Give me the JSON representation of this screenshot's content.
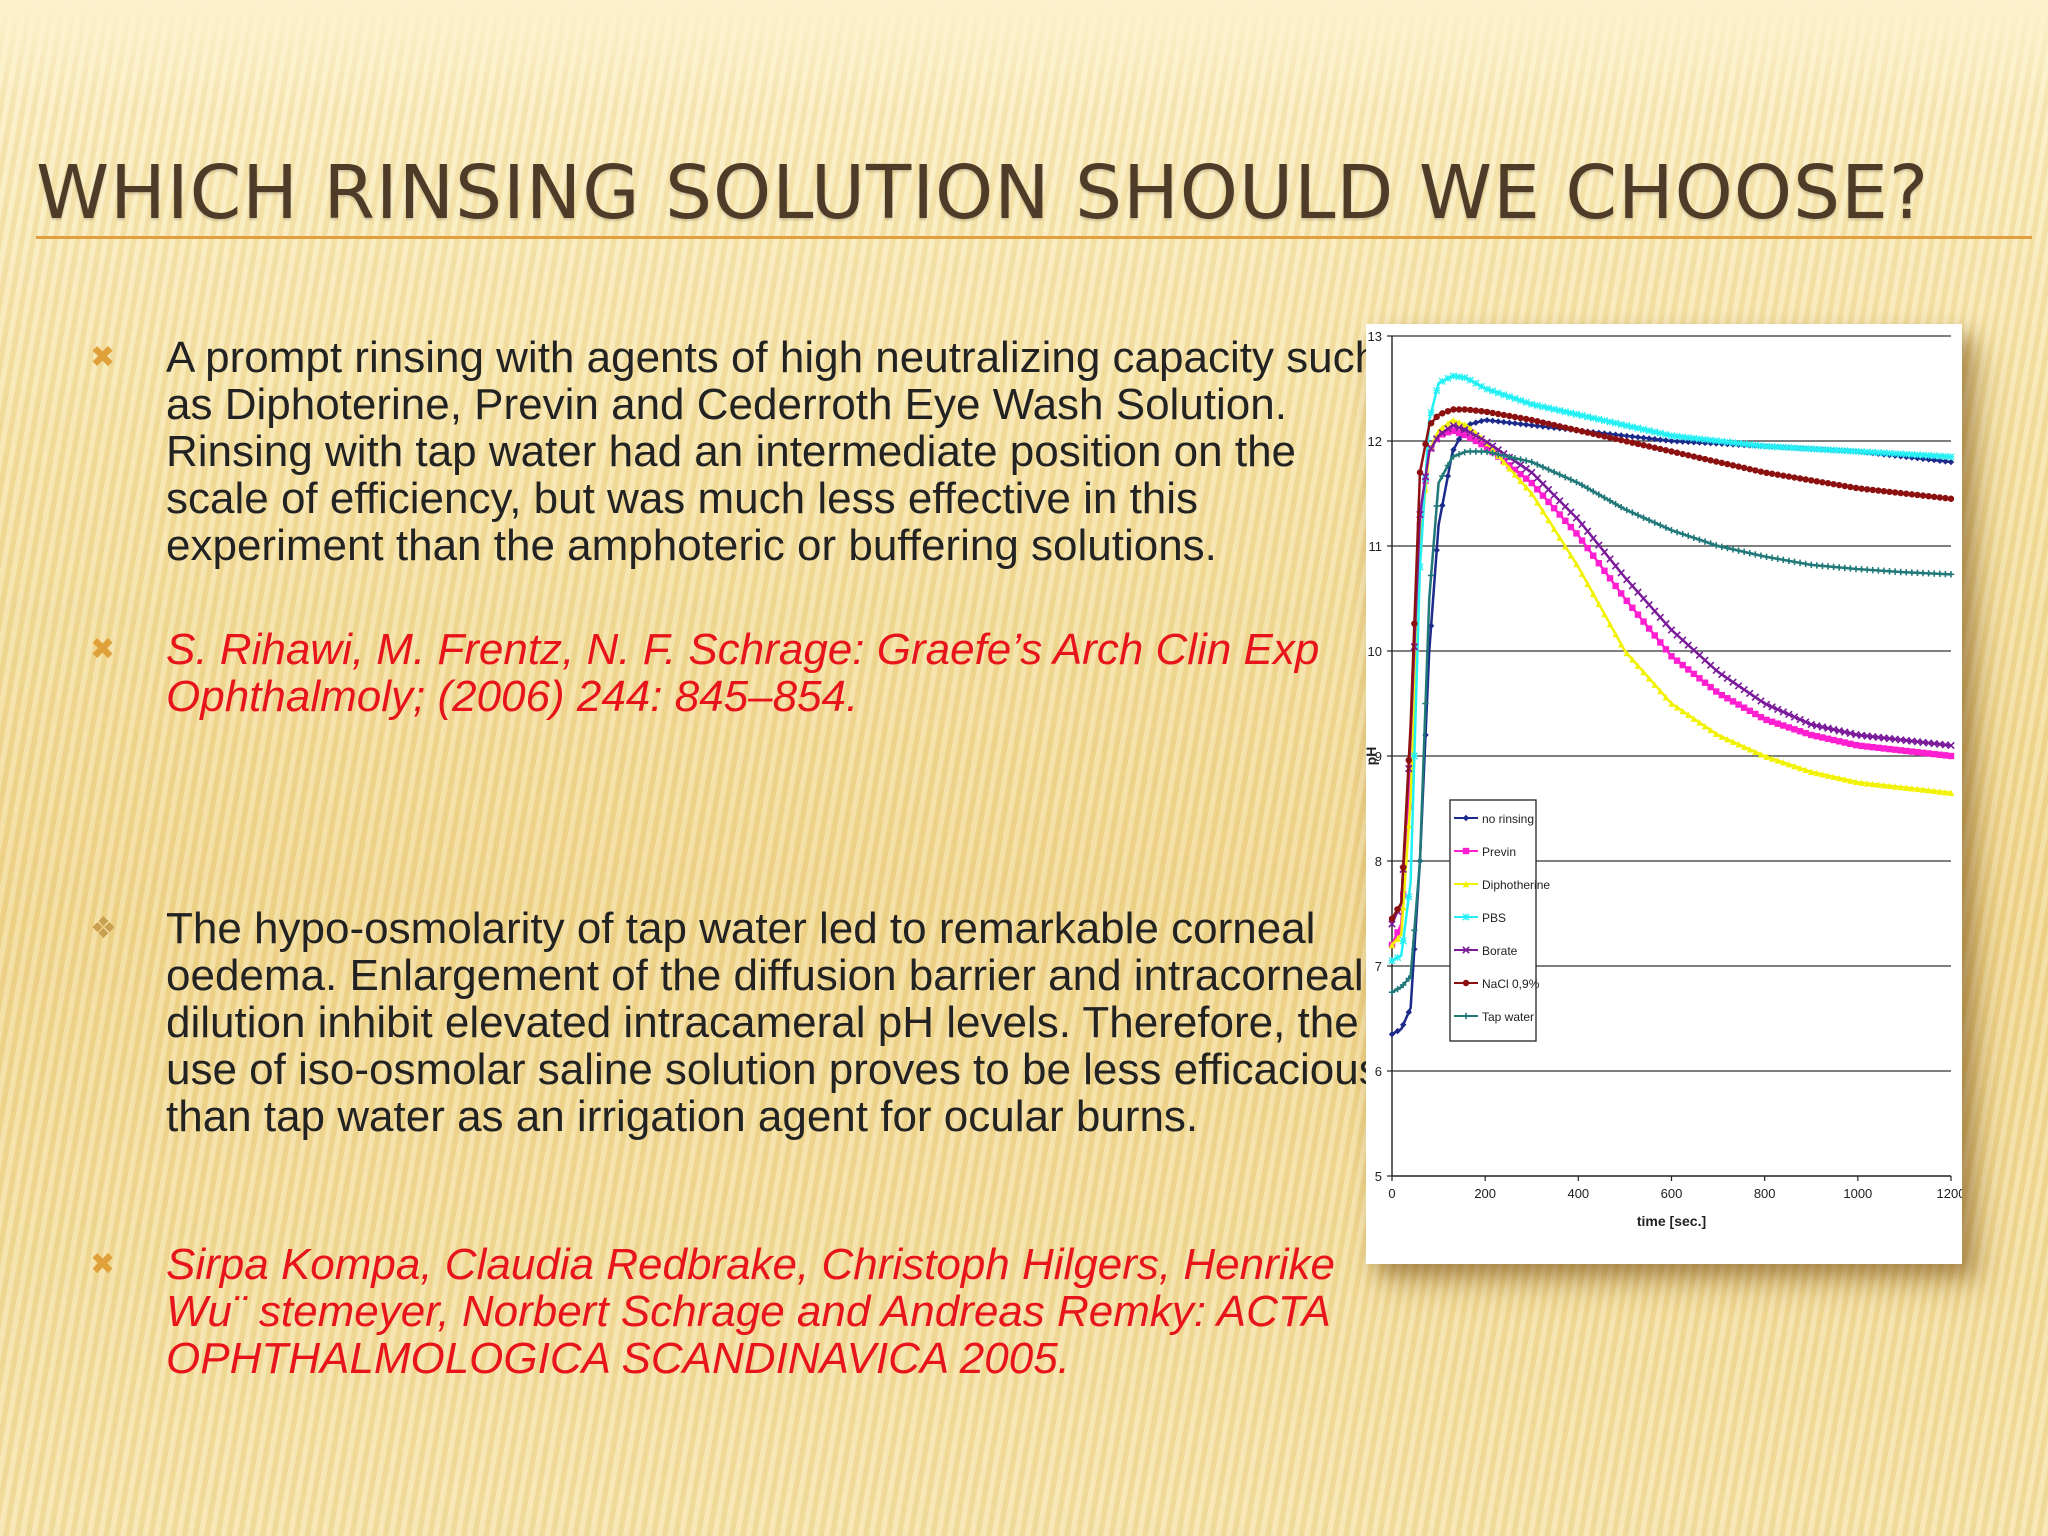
{
  "slide": {
    "title": "Which rinsing solution should we choose?",
    "bullets": [
      {
        "icon": "x-bullet-icon",
        "style": "body",
        "text": "A  prompt rinsing with agents of high neutralizing capacity such as Diphoterine, Previn and Cederroth Eye Wash Solution. Rinsing with tap water had an intermediate position on the scale of efficiency, but was much less effective in this experiment than the amphoteric or buffering solutions."
      },
      {
        "icon": "x-bullet-icon",
        "style": "citation",
        "text": "S. Rihawi, M. Frentz, N. F. Schrage: Graefe’s Arch Clin Exp Ophthalmoly; (2006) 244: 845–854."
      },
      {
        "icon": "diamond-bullet-icon",
        "style": "body",
        "text": "The hypo-osmolarity of tap water led to remarkable corneal oedema. Enlargement of the diffusion barrier and intracorneal dilution inhibit elevated intracameral pH levels. Therefore, the use of iso-osmolar saline solution proves to be less efficacious than tap water as an irrigation agent for ocular burns."
      },
      {
        "icon": "x-bullet-icon",
        "style": "citation",
        "text": "Sirpa Kompa, Claudia Redbrake, Christoph Hilgers, Henrike Wu¨ stemeyer,  Norbert Schrage and Andreas Remky:  ACTA OPHTHALMOLOGICA SCANDINAVICA 2005."
      }
    ],
    "bullet_glyphs": {
      "x": "✖",
      "diamond": "❖"
    },
    "colors": {
      "title": "#4e3b28",
      "accent": "#e0a040",
      "citation": "#e8141b",
      "body": "#222222"
    }
  },
  "chart_data": {
    "type": "line",
    "title": "",
    "xlabel": "time [sec.]",
    "ylabel": "pH",
    "xlim": [
      0,
      1200
    ],
    "ylim": [
      5,
      13
    ],
    "xticks": [
      0,
      200,
      400,
      600,
      800,
      1000,
      1200
    ],
    "yticks": [
      5,
      6,
      7,
      8,
      9,
      10,
      11,
      12,
      13
    ],
    "grid": "horizontal",
    "legend_position": "lower-left",
    "series": [
      {
        "name": "no rinsing",
        "color": "#1c2a8c",
        "marker": "diamond",
        "x": [
          0,
          20,
          40,
          60,
          80,
          100,
          130,
          160,
          200,
          300,
          400,
          600,
          800,
          1000,
          1200
        ],
        "y": [
          6.35,
          6.4,
          6.6,
          8.0,
          10.0,
          11.2,
          11.9,
          12.15,
          12.2,
          12.15,
          12.1,
          12.0,
          11.95,
          11.9,
          11.8
        ]
      },
      {
        "name": "Previn",
        "color": "#ff1ed0",
        "marker": "square",
        "x": [
          0,
          20,
          40,
          60,
          80,
          100,
          130,
          160,
          200,
          300,
          400,
          500,
          600,
          700,
          800,
          900,
          1000,
          1100,
          1200
        ],
        "y": [
          7.2,
          7.4,
          8.8,
          11.2,
          11.9,
          12.05,
          12.1,
          12.05,
          11.95,
          11.6,
          11.1,
          10.5,
          9.95,
          9.6,
          9.35,
          9.2,
          9.1,
          9.05,
          9.0
        ]
      },
      {
        "name": "Diphotherine",
        "color": "#f2f200",
        "marker": "triangle",
        "x": [
          0,
          20,
          40,
          60,
          80,
          100,
          130,
          160,
          200,
          300,
          400,
          500,
          600,
          700,
          800,
          900,
          1000,
          1100,
          1200
        ],
        "y": [
          7.2,
          7.3,
          8.6,
          11.0,
          11.9,
          12.1,
          12.2,
          12.15,
          12.0,
          11.5,
          10.8,
          10.0,
          9.5,
          9.2,
          9.0,
          8.85,
          8.75,
          8.7,
          8.65
        ]
      },
      {
        "name": "PBS",
        "color": "#22f0f4",
        "marker": "star",
        "x": [
          0,
          20,
          40,
          60,
          80,
          100,
          130,
          160,
          200,
          300,
          400,
          600,
          800,
          1000,
          1200
        ],
        "y": [
          7.05,
          7.1,
          7.8,
          10.8,
          12.2,
          12.55,
          12.62,
          12.6,
          12.5,
          12.35,
          12.25,
          12.05,
          11.95,
          11.9,
          11.85
        ]
      },
      {
        "name": "Borate",
        "color": "#7a1a9a",
        "marker": "x",
        "x": [
          0,
          20,
          40,
          60,
          80,
          100,
          130,
          160,
          200,
          300,
          400,
          500,
          600,
          700,
          800,
          900,
          1000,
          1100,
          1200
        ],
        "y": [
          7.4,
          7.6,
          9.2,
          11.3,
          11.9,
          12.05,
          12.15,
          12.1,
          12.0,
          11.7,
          11.25,
          10.7,
          10.2,
          9.8,
          9.5,
          9.3,
          9.2,
          9.15,
          9.1
        ]
      },
      {
        "name": "NaCl 0,9%",
        "color": "#8c1010",
        "marker": "circle",
        "x": [
          0,
          20,
          40,
          60,
          80,
          100,
          130,
          160,
          200,
          300,
          400,
          600,
          800,
          1000,
          1200
        ],
        "y": [
          7.45,
          7.6,
          9.3,
          11.7,
          12.15,
          12.25,
          12.3,
          12.3,
          12.28,
          12.2,
          12.1,
          11.9,
          11.7,
          11.55,
          11.45
        ]
      },
      {
        "name": "Tap water",
        "color": "#207878",
        "marker": "plus",
        "x": [
          0,
          20,
          40,
          60,
          80,
          100,
          130,
          160,
          200,
          300,
          400,
          500,
          600,
          700,
          800,
          900,
          1000,
          1100,
          1200
        ],
        "y": [
          6.75,
          6.8,
          6.9,
          8.0,
          10.5,
          11.6,
          11.85,
          11.9,
          11.9,
          11.8,
          11.6,
          11.35,
          11.15,
          11.0,
          10.9,
          10.82,
          10.78,
          10.75,
          10.73
        ]
      }
    ]
  }
}
